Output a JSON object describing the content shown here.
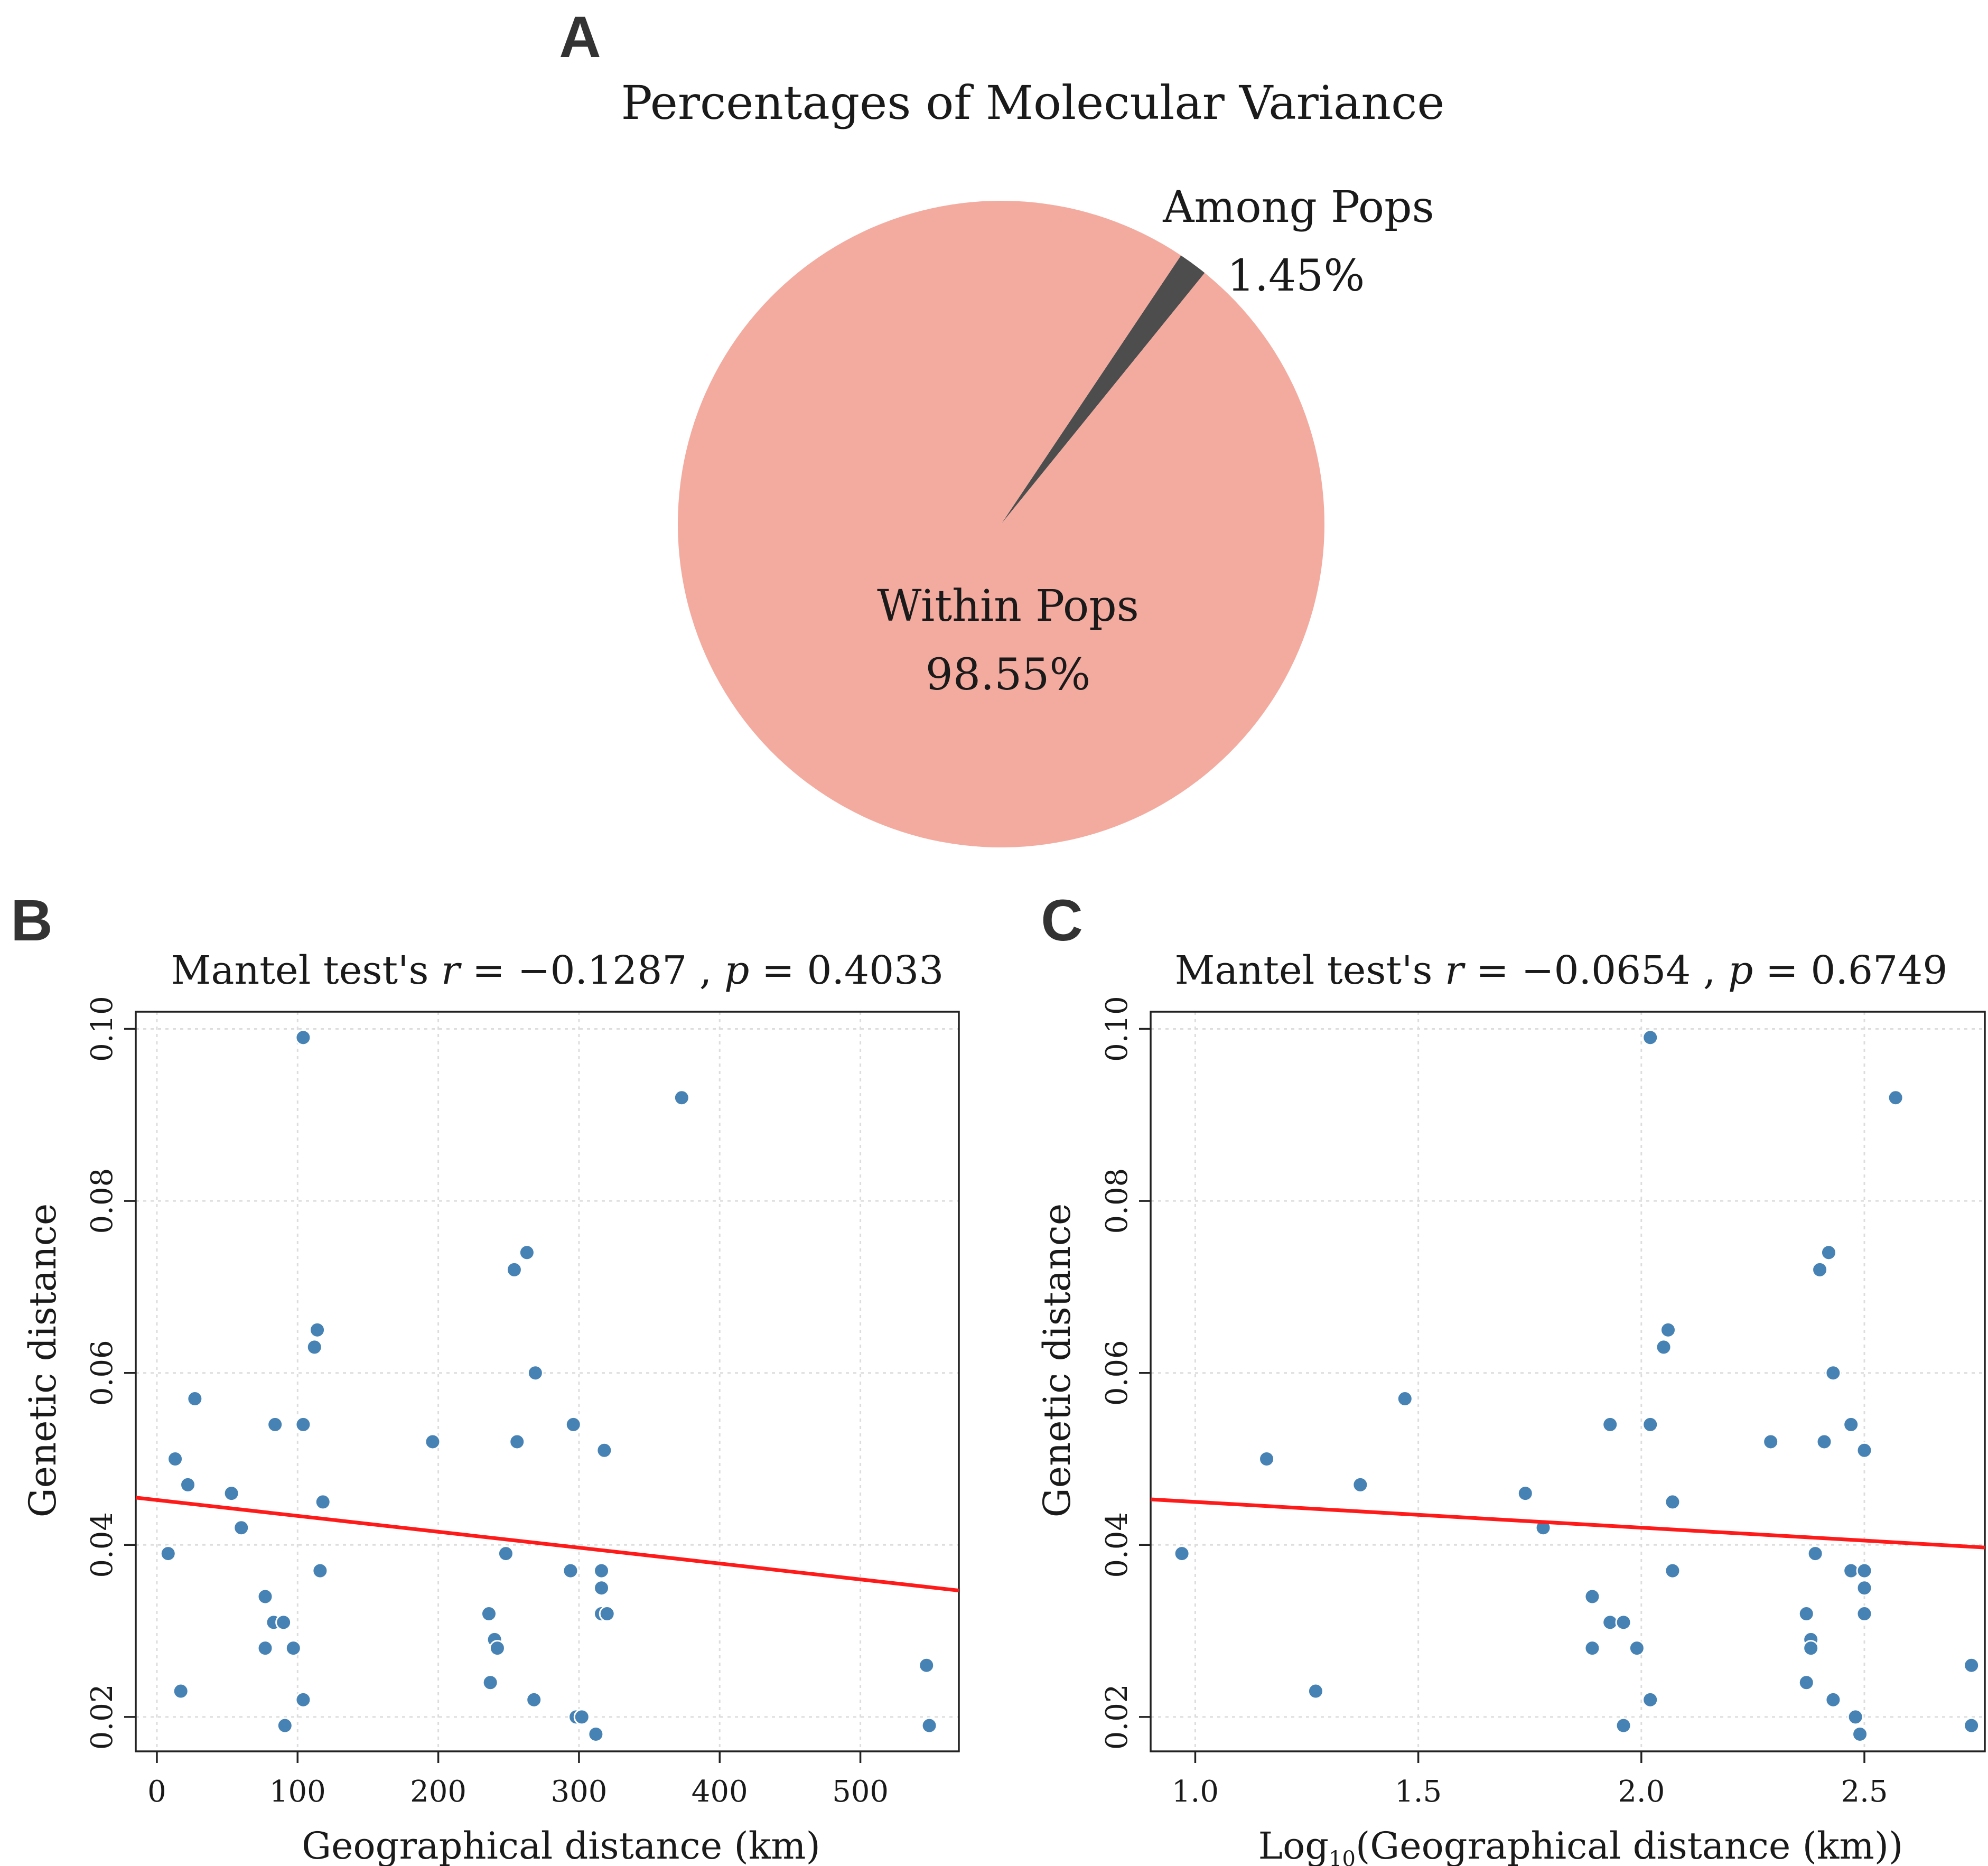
{
  "colors": {
    "within_slice": "#F4AB9F",
    "among_slice": "#4D4D4D",
    "points": "#4682B4",
    "regression": "#FF1A1A",
    "grid": "#DDDDDD",
    "axis": "#222222"
  },
  "chart_data": [
    {
      "panel": "A",
      "type": "pie",
      "title": "Percentages of Molecular Variance",
      "slices": [
        {
          "label": "Among Pops",
          "value": 1.45,
          "value_label": "1.45%"
        },
        {
          "label": "Within Pops",
          "value": 98.55,
          "value_label": "98.55%"
        }
      ]
    },
    {
      "panel": "B",
      "type": "scatter",
      "title": {
        "prefix": "Mantel test's",
        "r_symbol": "r",
        "r_text": "= −0.1287 ,",
        "p_symbol": "p",
        "p_text": "= 0.4033"
      },
      "xlabel": "Geographical distance (km)",
      "ylabel": "Genetic distance",
      "xlim": [
        -15,
        570
      ],
      "ylim": [
        0.016,
        0.102
      ],
      "xticks": [
        0,
        100,
        200,
        300,
        400,
        500
      ],
      "xtick_labels": [
        "0",
        "100",
        "200",
        "300",
        "400",
        "500"
      ],
      "yticks": [
        0.02,
        0.04,
        0.06,
        0.08,
        0.1
      ],
      "ytick_labels": [
        "0.02",
        "0.04",
        "0.06",
        "0.08",
        "0.10"
      ],
      "points": [
        [
          8,
          0.039
        ],
        [
          13,
          0.05
        ],
        [
          17,
          0.023
        ],
        [
          22,
          0.047
        ],
        [
          27,
          0.057
        ],
        [
          53,
          0.046
        ],
        [
          60,
          0.042
        ],
        [
          77,
          0.034
        ],
        [
          77,
          0.028
        ],
        [
          83,
          0.031
        ],
        [
          84,
          0.054
        ],
        [
          90,
          0.031
        ],
        [
          91,
          0.019
        ],
        [
          97,
          0.028
        ],
        [
          104,
          0.099
        ],
        [
          104,
          0.054
        ],
        [
          104,
          0.022
        ],
        [
          112,
          0.063
        ],
        [
          114,
          0.065
        ],
        [
          116,
          0.037
        ],
        [
          118,
          0.045
        ],
        [
          196,
          0.052
        ],
        [
          236,
          0.032
        ],
        [
          237,
          0.024
        ],
        [
          240,
          0.029
        ],
        [
          242,
          0.028
        ],
        [
          248,
          0.039
        ],
        [
          254,
          0.072
        ],
        [
          256,
          0.052
        ],
        [
          263,
          0.074
        ],
        [
          268,
          0.022
        ],
        [
          269,
          0.06
        ],
        [
          294,
          0.037
        ],
        [
          296,
          0.054
        ],
        [
          298,
          0.02
        ],
        [
          302,
          0.02
        ],
        [
          312,
          0.018
        ],
        [
          316,
          0.037
        ],
        [
          316,
          0.035
        ],
        [
          316,
          0.032
        ],
        [
          318,
          0.051
        ],
        [
          320,
          0.032
        ],
        [
          373,
          0.092
        ],
        [
          547,
          0.026
        ],
        [
          549,
          0.019
        ]
      ],
      "regression": {
        "x": [
          -15,
          570
        ],
        "y": [
          0.0455,
          0.0347
        ]
      }
    },
    {
      "panel": "C",
      "type": "scatter",
      "title": {
        "prefix": "Mantel test's",
        "r_symbol": "r",
        "r_text": "= −0.0654 ,",
        "p_symbol": "p",
        "p_text": "= 0.6749"
      },
      "xlabel_main": "Log",
      "xlabel_sub": "10",
      "xlabel_rest": "(Geographical distance (km))",
      "ylabel": "Genetic distance",
      "xlim": [
        0.9,
        2.77
      ],
      "ylim": [
        0.016,
        0.102
      ],
      "xticks": [
        1.0,
        1.5,
        2.0,
        2.5
      ],
      "xtick_labels": [
        "1.0",
        "1.5",
        "2.0",
        "2.5"
      ],
      "yticks": [
        0.02,
        0.04,
        0.06,
        0.08,
        0.1
      ],
      "ytick_labels": [
        "0.02",
        "0.04",
        "0.06",
        "0.08",
        "0.10"
      ],
      "points": [
        [
          0.97,
          0.039
        ],
        [
          1.16,
          0.05
        ],
        [
          1.27,
          0.023
        ],
        [
          1.37,
          0.047
        ],
        [
          1.47,
          0.057
        ],
        [
          1.74,
          0.046
        ],
        [
          1.78,
          0.042
        ],
        [
          1.89,
          0.034
        ],
        [
          1.89,
          0.028
        ],
        [
          1.93,
          0.031
        ],
        [
          1.93,
          0.054
        ],
        [
          1.96,
          0.031
        ],
        [
          1.96,
          0.019
        ],
        [
          1.99,
          0.028
        ],
        [
          2.02,
          0.099
        ],
        [
          2.02,
          0.054
        ],
        [
          2.02,
          0.022
        ],
        [
          2.05,
          0.063
        ],
        [
          2.06,
          0.065
        ],
        [
          2.07,
          0.037
        ],
        [
          2.07,
          0.045
        ],
        [
          2.29,
          0.052
        ],
        [
          2.37,
          0.032
        ],
        [
          2.37,
          0.024
        ],
        [
          2.38,
          0.029
        ],
        [
          2.38,
          0.028
        ],
        [
          2.39,
          0.039
        ],
        [
          2.4,
          0.072
        ],
        [
          2.41,
          0.052
        ],
        [
          2.42,
          0.074
        ],
        [
          2.43,
          0.022
        ],
        [
          2.43,
          0.06
        ],
        [
          2.47,
          0.037
        ],
        [
          2.47,
          0.054
        ],
        [
          2.48,
          0.02
        ],
        [
          2.49,
          0.018
        ],
        [
          2.5,
          0.037
        ],
        [
          2.5,
          0.035
        ],
        [
          2.5,
          0.032
        ],
        [
          2.5,
          0.051
        ],
        [
          2.57,
          0.092
        ],
        [
          2.74,
          0.026
        ],
        [
          2.74,
          0.019
        ]
      ],
      "regression": {
        "x": [
          0.9,
          2.77
        ],
        "y": [
          0.0453,
          0.0397
        ]
      }
    }
  ]
}
